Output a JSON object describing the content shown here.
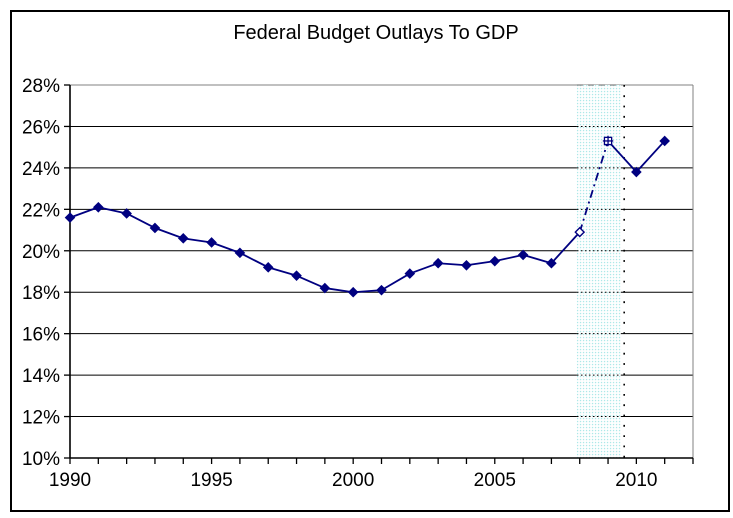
{
  "chart_data": {
    "type": "line",
    "title": "Federal Budget Outlays To GDP",
    "x": [
      1990,
      1991,
      1992,
      1993,
      1994,
      1995,
      1996,
      1997,
      1998,
      1999,
      2000,
      2001,
      2002,
      2003,
      2004,
      2005,
      2006,
      2007,
      2008,
      2009,
      2010,
      2011
    ],
    "series": [
      {
        "values": [
          21.6,
          22.1,
          21.8,
          21.1,
          20.6,
          20.4,
          19.9,
          19.2,
          18.8,
          18.2,
          18.0,
          18.1,
          18.9,
          19.4,
          19.3,
          19.5,
          19.8,
          19.4,
          20.9,
          25.3,
          23.8,
          25.3
        ],
        "color": "#000080",
        "marker": "diamond"
      }
    ],
    "xlim": [
      1990,
      2012
    ],
    "ylim": [
      10,
      28
    ],
    "y_tick_values": [
      10,
      12,
      14,
      16,
      18,
      20,
      22,
      24,
      26,
      28
    ],
    "y_tick_labels": [
      "10%",
      "12%",
      "14%",
      "16%",
      "18%",
      "20%",
      "22%",
      "24%",
      "26%",
      "28%"
    ],
    "x_tick_label_years": [
      1990,
      1995,
      2000,
      2005,
      2010
    ],
    "x_tick_labels": [
      "1990",
      "1995",
      "2000",
      "2005",
      "2010"
    ],
    "x_minor_tick_step": 1,
    "grid": "horizontal",
    "legend": "none",
    "annotations": {
      "highlight_band": {
        "x_start": 2007.9,
        "x_end": 2009.45,
        "pattern": "cyan-dots"
      },
      "dotted_vline": {
        "x": 2009.57
      },
      "open_markers": [
        {
          "year": 2008,
          "shape": "open-diamond"
        },
        {
          "year": 2009,
          "shape": "open-square-plus"
        }
      ],
      "dash_dot_segment": {
        "from_year": 2008,
        "to_year": 2009
      }
    }
  },
  "colors": {
    "series_line": "#000080",
    "gridline": "#000000",
    "top_border": "#808080",
    "right_border": "#808080",
    "axis": "#000000",
    "band_dot": "#ace8e8",
    "band_bg": "#ffffff",
    "outer_border": "#000000",
    "background": "#ffffff",
    "text": "#000000"
  }
}
